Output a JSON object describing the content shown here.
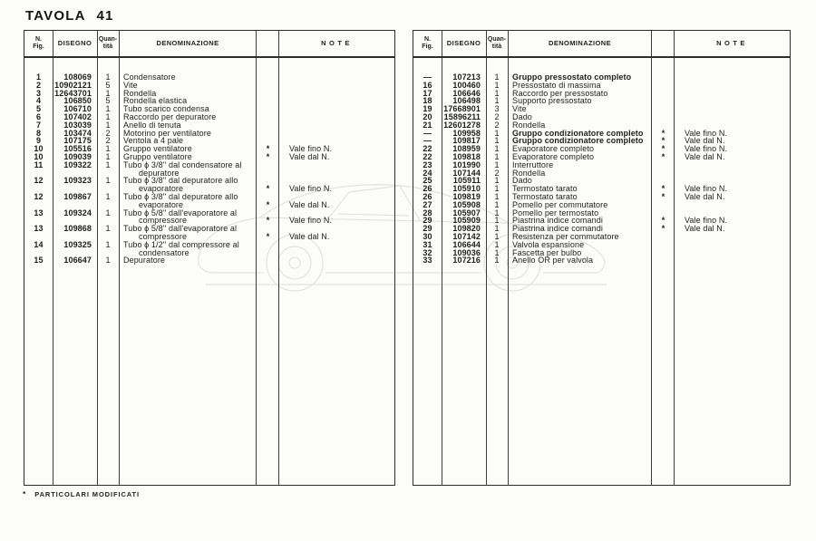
{
  "page": {
    "title": "TAVOLA 41",
    "footer": {
      "symbol": "*",
      "label": "PARTICOLARI MODIFICATI"
    }
  },
  "headers": {
    "fig_top": "N.",
    "fig_bottom": "Fig.",
    "disegno": "DISEGNO",
    "qty_top": "Quan-",
    "qty_bottom": "tità",
    "denominazione": "DENOMINAZIONE",
    "note": "NOTE"
  },
  "colors": {
    "paper": "#fcfcfb",
    "ink": "#1d1d1b",
    "table_line": "#2e2e2e",
    "watermark": "#e2e2e2"
  },
  "left_table": {
    "rows": [
      {
        "fig": "1",
        "dis": "108069",
        "qty": "1",
        "den": "Condensatore"
      },
      {
        "fig": "2",
        "dis": "10902121",
        "qty": "5",
        "den": "Vite"
      },
      {
        "fig": "3",
        "dis": "12643701",
        "qty": "1",
        "den": "Rondella"
      },
      {
        "fig": "4",
        "dis": "106850",
        "qty": "5",
        "den": "Rondella elastica"
      },
      {
        "fig": "5",
        "dis": "106710",
        "qty": "1",
        "den": "Tubo scarico condensa"
      },
      {
        "fig": "6",
        "dis": "107402",
        "qty": "1",
        "den": "Raccordo per depuratore"
      },
      {
        "fig": "7",
        "dis": "103039",
        "qty": "1",
        "den": "Anello di tenuta"
      },
      {
        "fig": "8",
        "dis": "103474",
        "qty": "2",
        "den": "Motorino per ventilatore"
      },
      {
        "fig": "9",
        "dis": "107175",
        "qty": "2",
        "den": "Ventola a 4 pale"
      },
      {
        "fig": "10",
        "dis": "105516",
        "qty": "1",
        "den": "Gruppo ventilatore",
        "star": "*",
        "note": "Vale fino N."
      },
      {
        "fig": "10",
        "dis": "109039",
        "qty": "1",
        "den": "Gruppo ventilatore",
        "star": "*",
        "note": "Vale dal N."
      },
      {
        "fig": "11",
        "dis": "109322",
        "qty": "1",
        "den": [
          "Tubo ϕ 3/8'' dal condensatore al",
          "depuratore"
        ]
      },
      {
        "fig": "12",
        "dis": "109323",
        "qty": "1",
        "den": [
          "Tubo ϕ 3/8'' dal depuratore allo",
          "evaporatore"
        ],
        "star": "*",
        "note": "Vale fino N.",
        "note_line": 2
      },
      {
        "fig": "12",
        "dis": "109867",
        "qty": "1",
        "den": [
          "Tubo ϕ 3/8'' dal depuratore allo",
          "evaporatore"
        ],
        "star": "*",
        "note": "Vale dal N.",
        "note_line": 2
      },
      {
        "fig": "13",
        "dis": "109324",
        "qty": "1",
        "den": [
          "Tubo ϕ 5/8'' dall'evaporatore al",
          "compressore"
        ],
        "star": "*",
        "note": "Vale fino N.",
        "note_line": 2
      },
      {
        "fig": "13",
        "dis": "109868",
        "qty": "1",
        "den": [
          "Tubo ϕ 5/8'' dall'evaporatore al",
          "compressore"
        ],
        "star": "*",
        "note": "Vale dal N.",
        "note_line": 2
      },
      {
        "fig": "14",
        "dis": "109325",
        "qty": "1",
        "den": [
          "Tubo ϕ 1/2'' dal compressore al",
          "condensatore"
        ]
      },
      {
        "fig": "15",
        "dis": "106647",
        "qty": "1",
        "den": "Depuratore"
      }
    ]
  },
  "right_table": {
    "rows": [
      {
        "fig": "—",
        "dis": "107213",
        "qty": "1",
        "den": "Gruppo pressostato completo",
        "bold": true
      },
      {
        "fig": "16",
        "dis": "100460",
        "qty": "1",
        "den": "Pressostato di massima"
      },
      {
        "fig": "17",
        "dis": "106646",
        "qty": "1",
        "den": "Raccordo per pressostato"
      },
      {
        "fig": "18",
        "dis": "106498",
        "qty": "1",
        "den": "Supporto pressostato"
      },
      {
        "fig": "19",
        "dis": "17668901",
        "qty": "3",
        "den": "Vite"
      },
      {
        "fig": "20",
        "dis": "15896211",
        "qty": "2",
        "den": "Dado"
      },
      {
        "fig": "21",
        "dis": "12601278",
        "qty": "2",
        "den": "Rondella"
      },
      {
        "fig": "—",
        "dis": "109958",
        "qty": "1",
        "den": "Gruppo condizionatore completo",
        "bold": true,
        "star": "*",
        "note": "Vale fino N."
      },
      {
        "fig": "—",
        "dis": "109817",
        "qty": "1",
        "den": "Gruppo condizionatore completo",
        "bold": true,
        "star": "*",
        "note": "Vale dal N."
      },
      {
        "fig": "22",
        "dis": "108959",
        "qty": "1",
        "den": "Evaporatore completo",
        "star": "*",
        "note": "Vale fino N."
      },
      {
        "fig": "22",
        "dis": "109818",
        "qty": "1",
        "den": "Evaporatore completo",
        "star": "*",
        "note": "Vale dal N."
      },
      {
        "fig": "23",
        "dis": "101990",
        "qty": "1",
        "den": "Interruttore"
      },
      {
        "fig": "24",
        "dis": "107144",
        "qty": "2",
        "den": "Rondella"
      },
      {
        "fig": "25",
        "dis": "105911",
        "qty": "1",
        "den": "Dado"
      },
      {
        "fig": "26",
        "dis": "105910",
        "qty": "1",
        "den": "Termostato tarato",
        "star": "*",
        "note": "Vale fino N."
      },
      {
        "fig": "26",
        "dis": "109819",
        "qty": "1",
        "den": "Termostato tarato",
        "star": "*",
        "note": "Vale dal N."
      },
      {
        "fig": "27",
        "dis": "105908",
        "qty": "1",
        "den": "Pomello per commutatore"
      },
      {
        "fig": "28",
        "dis": "105907",
        "qty": "1",
        "den": "Pomello per termostato"
      },
      {
        "fig": "29",
        "dis": "105909",
        "qty": "1",
        "den": "Piastrina indice comandi",
        "star": "*",
        "note": "Vale fino N."
      },
      {
        "fig": "29",
        "dis": "109820",
        "qty": "1",
        "den": "Piastrina indice comandi",
        "star": "*",
        "note": "Vale dal N."
      },
      {
        "fig": "30",
        "dis": "107142",
        "qty": "1",
        "den": "Resistenza per commutatore"
      },
      {
        "fig": "31",
        "dis": "106644",
        "qty": "1",
        "den": "Valvola espansione"
      },
      {
        "fig": "32",
        "dis": "109036",
        "qty": "1",
        "den": "Fascetta per bulbo"
      },
      {
        "fig": "33",
        "dis": "107216",
        "qty": "1",
        "den": "Anello OR per valvola"
      }
    ]
  }
}
